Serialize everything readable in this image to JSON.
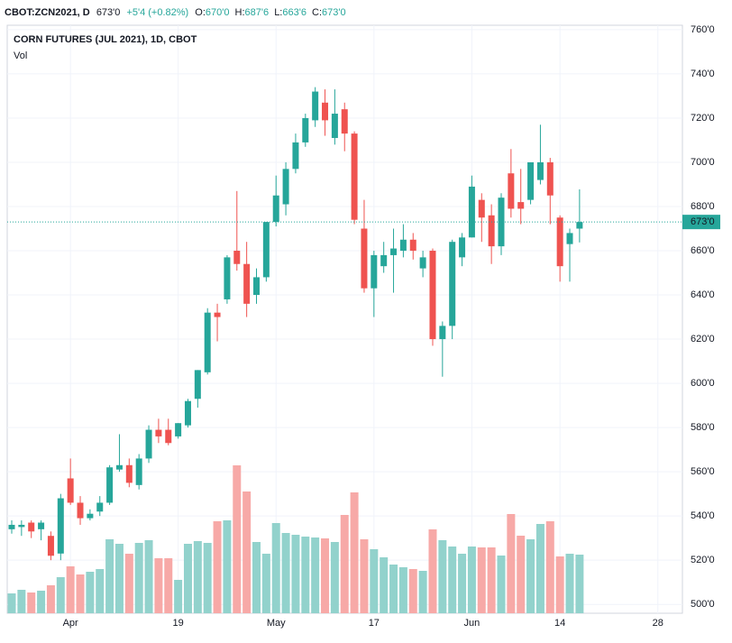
{
  "header": {
    "symbol": "CBOT:ZCN2021, D",
    "last": "673'0",
    "change": "+5'4 (+0.82%)",
    "ohlc": [
      {
        "label": "O:",
        "value": "670'0"
      },
      {
        "label": "H:",
        "value": "687'6"
      },
      {
        "label": "L:",
        "value": "663'6"
      },
      {
        "label": "C:",
        "value": "673'0"
      }
    ]
  },
  "chart_data": {
    "type": "candlestick",
    "title": "CORN FUTURES (JUL 2021), 1D, CBOT",
    "volume_label": "Vol",
    "categories": [
      null,
      null,
      null,
      null,
      null,
      null,
      "Apr",
      null,
      null,
      null,
      null,
      null,
      null,
      null,
      null,
      null,
      null,
      "19",
      null,
      null,
      null,
      null,
      null,
      null,
      null,
      null,
      null,
      "May",
      null,
      null,
      null,
      null,
      null,
      null,
      null,
      null,
      null,
      "17",
      null,
      null,
      null,
      null,
      null,
      null,
      null,
      null,
      null,
      "Jun",
      null,
      null,
      null,
      null,
      null,
      null,
      null,
      null,
      "14",
      null,
      null,
      null,
      null,
      null,
      null,
      null,
      null,
      null,
      "28",
      null,
      null
    ],
    "open": [
      534,
      535,
      537,
      534,
      531,
      523,
      557,
      546,
      539,
      542,
      546,
      561,
      563,
      554,
      566,
      579,
      579,
      576,
      581,
      593,
      605,
      632,
      638,
      660,
      654,
      640,
      648,
      673,
      681,
      697,
      709,
      719,
      727,
      711,
      724,
      713,
      670,
      643,
      653,
      658,
      660,
      665,
      652,
      660,
      620,
      626,
      657,
      666,
      683,
      676,
      662,
      695,
      682,
      683,
      692,
      700,
      675,
      663,
      670,
      null,
      null,
      null,
      null,
      null,
      null,
      null,
      null,
      null,
      null
    ],
    "high": [
      538,
      538,
      538,
      538,
      533,
      550,
      566,
      549,
      543,
      549,
      563,
      577,
      566,
      568,
      581,
      584,
      584,
      582,
      593,
      606,
      634,
      636,
      658,
      687,
      664,
      652,
      673,
      694,
      700,
      713,
      722,
      734,
      733,
      733,
      727,
      714,
      683,
      660,
      664,
      670,
      672,
      668,
      660,
      661,
      628,
      665,
      668,
      694,
      686,
      681,
      686,
      706,
      697,
      700,
      717,
      702,
      676,
      670,
      687.75,
      null,
      null,
      null,
      null,
      null,
      null,
      null,
      null,
      null,
      null
    ],
    "low": [
      532,
      531,
      530,
      529,
      520,
      520,
      545,
      536,
      538,
      540,
      545,
      560,
      553,
      552,
      564,
      573,
      572,
      575,
      580,
      589,
      604,
      619,
      636,
      651,
      630,
      636,
      646,
      671,
      676,
      695,
      707,
      716,
      712,
      708,
      705,
      672,
      641,
      630,
      650,
      641,
      657,
      656,
      648,
      617,
      603,
      620,
      653,
      666,
      664,
      654,
      658,
      675,
      672,
      681,
      690,
      672,
      646,
      646,
      663.75,
      null,
      null,
      null,
      null,
      null,
      null,
      null,
      null,
      null,
      null
    ],
    "close": [
      536,
      536,
      533,
      537,
      522,
      548,
      546,
      539,
      541,
      546,
      562,
      563,
      555,
      566,
      579,
      576,
      573,
      582,
      592,
      606,
      632,
      630,
      657,
      654,
      636,
      648,
      673,
      685,
      697,
      709,
      720,
      732,
      719,
      722,
      713,
      674,
      643,
      658,
      658,
      661,
      665,
      660,
      657,
      620,
      626,
      664,
      666,
      689,
      675,
      662,
      684,
      679,
      679,
      700,
      700,
      685,
      653,
      668,
      673,
      null,
      null,
      null,
      null,
      null,
      null,
      null,
      null,
      null,
      null
    ],
    "volume": [
      44,
      52,
      46,
      50,
      62,
      80,
      104,
      86,
      92,
      98,
      164,
      154,
      132,
      156,
      162,
      122,
      122,
      74,
      154,
      160,
      156,
      204,
      206,
      328,
      270,
      158,
      132,
      200,
      178,
      174,
      170,
      168,
      166,
      158,
      218,
      268,
      164,
      142,
      124,
      108,
      102,
      98,
      94,
      186,
      162,
      148,
      132,
      148,
      146,
      146,
      128,
      220,
      172,
      164,
      198,
      204,
      126,
      132,
      130,
      null,
      null,
      null,
      null,
      null,
      null,
      null,
      null,
      null,
      null
    ],
    "up_color": "#26a69a",
    "down_color": "#ef5350",
    "volume_up_color": "#92d2cc",
    "volume_down_color": "#f7a9a7",
    "last_price": {
      "value": 673,
      "label": "673'0"
    },
    "ylim": [
      496,
      762
    ],
    "yticks": [
      {
        "value": 500,
        "label": "500'0"
      },
      {
        "value": 520,
        "label": "520'0"
      },
      {
        "value": 540,
        "label": "540'0"
      },
      {
        "value": 560,
        "label": "560'0"
      },
      {
        "value": 580,
        "label": "580'0"
      },
      {
        "value": 600,
        "label": "600'0"
      },
      {
        "value": 620,
        "label": "620'0"
      },
      {
        "value": 640,
        "label": "640'0"
      },
      {
        "value": 660,
        "label": "660'0"
      },
      {
        "value": 680,
        "label": "680'0"
      },
      {
        "value": 700,
        "label": "700'0"
      },
      {
        "value": 720,
        "label": "720'0"
      },
      {
        "value": 740,
        "label": "740'0"
      },
      {
        "value": 760,
        "label": "760'0"
      }
    ],
    "grid": true
  }
}
